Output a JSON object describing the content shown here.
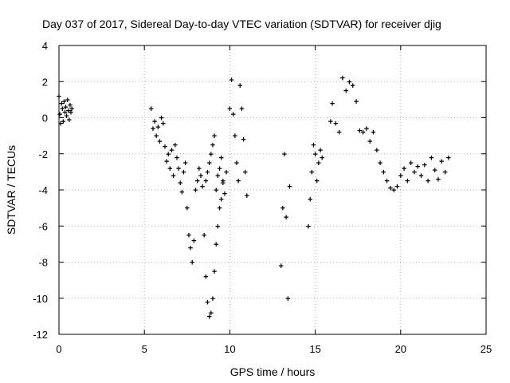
{
  "chart_data": {
    "type": "scatter",
    "title": "Day 037 of 2017, Sidereal Day-to-day VTEC variation (SDTVAR) for receiver djig",
    "xlabel": "GPS time / hours",
    "ylabel": "SDTVAR / TECUs",
    "xlim": [
      0,
      25
    ],
    "ylim": [
      -12,
      4
    ],
    "xticks": [
      0,
      5,
      10,
      15,
      20,
      25
    ],
    "yticks": [
      -12,
      -10,
      -8,
      -6,
      -4,
      -2,
      0,
      2,
      4
    ],
    "grid": true,
    "legend": "none",
    "marker": "+",
    "color": "#ff0000",
    "series": [
      {
        "x": [
          0.0,
          0.05,
          0.1,
          0.15,
          0.2,
          0.25,
          0.3,
          0.35,
          0.4,
          0.45,
          0.5,
          0.55,
          0.6,
          0.65,
          0.7,
          0.75,
          5.4,
          5.5,
          5.6,
          5.7,
          5.8,
          5.9,
          6.0,
          6.1,
          6.2,
          6.3,
          6.4,
          6.5,
          6.6,
          6.7,
          6.8,
          6.9,
          7.0,
          7.1,
          7.2,
          7.3,
          7.4,
          7.5,
          7.6,
          7.7,
          7.8,
          7.9,
          8.0,
          8.1,
          8.2,
          8.3,
          8.4,
          8.5,
          8.6,
          8.7,
          8.8,
          8.9,
          9.0,
          9.1,
          9.2,
          9.3,
          9.4,
          9.5,
          9.6,
          8.6,
          8.7,
          8.8,
          8.9,
          9.0,
          9.1,
          9.2,
          9.3,
          9.4,
          9.5,
          9.6,
          9.7,
          9.8,
          10.0,
          10.1,
          10.2,
          10.3,
          10.4,
          10.5,
          10.6,
          10.7,
          10.8,
          10.9,
          11.0,
          13.0,
          13.1,
          13.2,
          13.3,
          13.4,
          13.5,
          14.6,
          14.7,
          14.8,
          14.9,
          15.0,
          15.1,
          15.2,
          15.3,
          15.4,
          15.9,
          16.0,
          16.2,
          16.4,
          16.6,
          16.8,
          17.0,
          17.2,
          17.4,
          17.6,
          17.8,
          18.0,
          18.2,
          18.4,
          18.6,
          18.8,
          19.0,
          19.2,
          19.4,
          19.6,
          19.8,
          20.0,
          20.2,
          20.4,
          20.6,
          20.8,
          21.0,
          21.2,
          21.4,
          21.6,
          21.8,
          22.0,
          22.2,
          22.4,
          22.6,
          22.8
        ],
        "y": [
          1.2,
          0.2,
          -0.3,
          0.8,
          0.5,
          -0.2,
          0.9,
          0.3,
          0.6,
          0.1,
          1.0,
          0.4,
          -0.1,
          0.7,
          0.3,
          0.5,
          0.5,
          -0.6,
          -0.2,
          -1.0,
          -0.5,
          -1.3,
          0.0,
          -0.3,
          -1.6,
          -2.4,
          -2.0,
          -2.8,
          -1.8,
          -3.2,
          -1.5,
          -2.2,
          -2.8,
          -3.6,
          -4.1,
          -3.0,
          -2.5,
          -5.0,
          -6.5,
          -7.2,
          -8.0,
          -6.8,
          -4.0,
          -3.5,
          -2.8,
          -3.2,
          -3.8,
          -6.5,
          -8.8,
          -10.2,
          -11.0,
          -10.8,
          -10.0,
          -8.5,
          -7.0,
          -6.0,
          -5.0,
          -4.5,
          -3.6,
          -3.5,
          -3.0,
          -2.5,
          -2.0,
          -1.5,
          -1.0,
          -4.0,
          -3.2,
          -2.8,
          -2.2,
          -3.5,
          -4.2,
          -3.0,
          0.5,
          2.1,
          0.2,
          -1.0,
          -2.5,
          -3.5,
          1.8,
          0.5,
          -1.2,
          -3.0,
          -4.3,
          -8.2,
          -5.0,
          -2.0,
          -5.5,
          -10.0,
          -3.8,
          -6.0,
          -4.5,
          -3.0,
          -1.5,
          -2.0,
          -3.5,
          -2.5,
          -1.8,
          -2.2,
          -0.2,
          0.8,
          -0.3,
          -0.8,
          2.2,
          1.5,
          2.0,
          1.8,
          0.9,
          -0.7,
          -0.8,
          -0.6,
          -1.3,
          -0.8,
          -1.8,
          -2.5,
          -3.0,
          -3.5,
          -3.9,
          -4.0,
          -3.8,
          -3.2,
          -2.8,
          -3.5,
          -2.5,
          -3.0,
          -2.7,
          -3.2,
          -2.6,
          -3.5,
          -2.2,
          -2.9,
          -3.4,
          -2.4,
          -3.0,
          -2.2
        ]
      }
    ]
  }
}
